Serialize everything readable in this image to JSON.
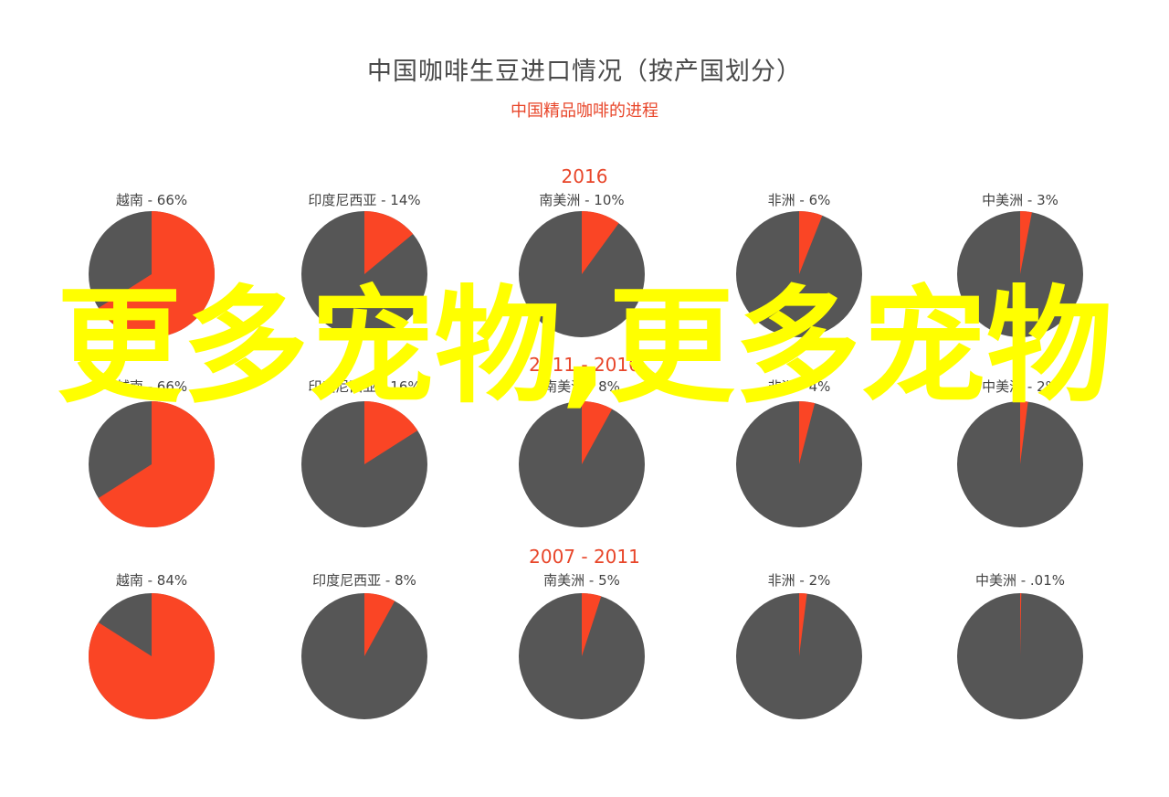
{
  "title": "中国咖啡生豆进口情况（按产国划分）",
  "subtitle": "中国精品咖啡的进程",
  "colors": {
    "slice": "#fa4525",
    "rest": "#565656",
    "period": "#e8462a",
    "label": "#444444"
  },
  "chart_data": [
    {
      "type": "pie",
      "period": "2016",
      "slices": [
        {
          "label": "越南",
          "value_label": "66%",
          "value": 66
        },
        {
          "label": "印度尼西亚",
          "value_label": "14%",
          "value": 14
        },
        {
          "label": "南美洲",
          "value_label": "10%",
          "value": 10
        },
        {
          "label": "非洲",
          "value_label": "6%",
          "value": 6
        },
        {
          "label": "中美洲",
          "value_label": "3%",
          "value": 3
        }
      ]
    },
    {
      "type": "pie",
      "period": "2011 - 2016",
      "slices": [
        {
          "label": "越南",
          "value_label": "66%",
          "value": 66
        },
        {
          "label": "印度尼西亚",
          "value_label": "16%",
          "value": 16
        },
        {
          "label": "南美洲",
          "value_label": "8%",
          "value": 8
        },
        {
          "label": "非洲",
          "value_label": "4%",
          "value": 4
        },
        {
          "label": "中美洲",
          "value_label": "2%",
          "value": 2
        }
      ]
    },
    {
      "type": "pie",
      "period": "2007 - 2011",
      "slices": [
        {
          "label": "越南",
          "value_label": "84%",
          "value": 84
        },
        {
          "label": "印度尼西亚",
          "value_label": "8%",
          "value": 8
        },
        {
          "label": "南美洲",
          "value_label": "5%",
          "value": 5
        },
        {
          "label": "非洲",
          "value_label": "2%",
          "value": 2
        },
        {
          "label": "中美洲",
          "value_label": ".01%",
          "value": 0.01
        }
      ]
    }
  ],
  "watermark": "更多宠物,更多宠物"
}
